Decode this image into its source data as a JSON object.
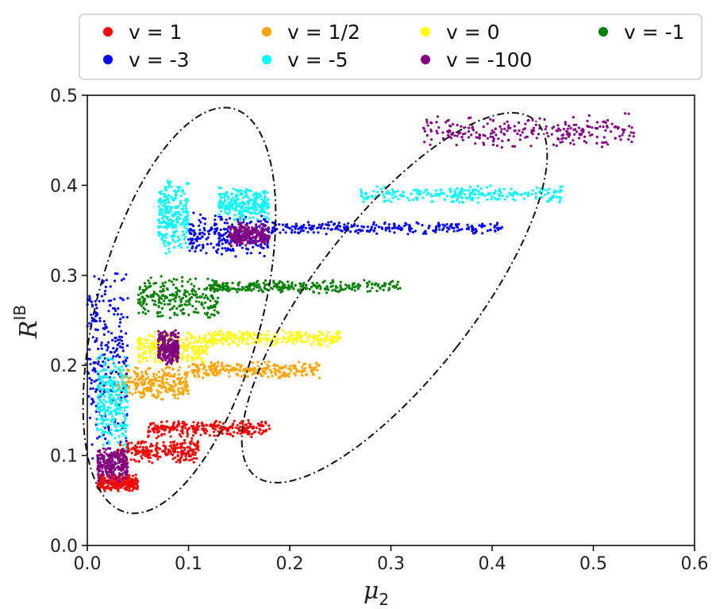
{
  "chart_data": {
    "type": "scatter",
    "title": "",
    "xlabel": "μ",
    "xlabel_sub": "2",
    "ylabel": "R",
    "ylabel_sup": "IB",
    "xlim": [
      0.0,
      0.6
    ],
    "ylim": [
      0.0,
      0.5
    ],
    "xticks": [
      "0.0",
      "0.1",
      "0.2",
      "0.3",
      "0.4",
      "0.5",
      "0.6"
    ],
    "xtick_values": [
      0.0,
      0.1,
      0.2,
      0.3,
      0.4,
      0.5,
      0.6
    ],
    "yticks": [
      "0.0",
      "0.1",
      "0.2",
      "0.3",
      "0.4",
      "0.5"
    ],
    "ytick_values": [
      0.0,
      0.1,
      0.2,
      0.3,
      0.4,
      0.5
    ],
    "grid": false,
    "legend_position": "top",
    "series": [
      {
        "name": "v = 1",
        "color": "#ff0000",
        "clusters": [
          {
            "x": [
              0.03,
              0.11
            ],
            "y": [
              0.09,
              0.12
            ]
          },
          {
            "x": [
              0.06,
              0.18
            ],
            "y": [
              0.12,
              0.14
            ]
          },
          {
            "x": [
              0.01,
              0.05
            ],
            "y": [
              0.06,
              0.08
            ]
          }
        ]
      },
      {
        "name": "v = 1/2",
        "color": "#ffa500",
        "clusters": [
          {
            "x": [
              0.03,
              0.1
            ],
            "y": [
              0.16,
              0.2
            ]
          },
          {
            "x": [
              0.1,
              0.23
            ],
            "y": [
              0.185,
              0.205
            ]
          }
        ]
      },
      {
        "name": "v = 0",
        "color": "#ffff00",
        "clusters": [
          {
            "x": [
              0.05,
              0.12
            ],
            "y": [
              0.2,
              0.24
            ]
          },
          {
            "x": [
              0.12,
              0.25
            ],
            "y": [
              0.22,
              0.24
            ]
          }
        ]
      },
      {
        "name": "v = -1",
        "color": "#008000",
        "clusters": [
          {
            "x": [
              0.05,
              0.13
            ],
            "y": [
              0.25,
              0.3
            ]
          },
          {
            "x": [
              0.12,
              0.31
            ],
            "y": [
              0.28,
              0.295
            ]
          }
        ]
      },
      {
        "name": "v = -3",
        "color": "#0000ff",
        "clusters": [
          {
            "x": [
              0.0,
              0.04
            ],
            "y": [
              0.08,
              0.32
            ]
          },
          {
            "x": [
              0.1,
              0.18
            ],
            "y": [
              0.32,
              0.37
            ]
          },
          {
            "x": [
              0.18,
              0.41
            ],
            "y": [
              0.345,
              0.36
            ]
          }
        ]
      },
      {
        "name": "v = -5",
        "color": "#00ffff",
        "clusters": [
          {
            "x": [
              0.01,
              0.04
            ],
            "y": [
              0.1,
              0.22
            ]
          },
          {
            "x": [
              0.07,
              0.1
            ],
            "y": [
              0.32,
              0.41
            ]
          },
          {
            "x": [
              0.13,
              0.18
            ],
            "y": [
              0.36,
              0.4
            ]
          },
          {
            "x": [
              0.27,
              0.47
            ],
            "y": [
              0.38,
              0.4
            ]
          }
        ]
      },
      {
        "name": "v = -100",
        "color": "#800080",
        "clusters": [
          {
            "x": [
              0.01,
              0.04
            ],
            "y": [
              0.07,
              0.11
            ]
          },
          {
            "x": [
              0.07,
              0.09
            ],
            "y": [
              0.2,
              0.24
            ]
          },
          {
            "x": [
              0.14,
              0.18
            ],
            "y": [
              0.33,
              0.36
            ]
          },
          {
            "x": [
              0.33,
              0.54
            ],
            "y": [
              0.44,
              0.48
            ]
          }
        ]
      }
    ],
    "annotations": [
      {
        "type": "ellipse",
        "style": "dash-dot",
        "center": [
          0.09,
          0.26
        ],
        "description": "encloses low-μ2 clusters"
      },
      {
        "type": "ellipse",
        "style": "dash-dot",
        "center": [
          0.35,
          0.27
        ],
        "description": "encloses high-μ2 tails"
      }
    ]
  }
}
